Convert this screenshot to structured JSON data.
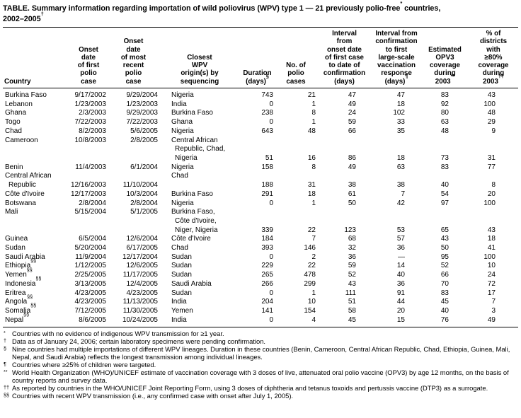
{
  "title": {
    "segments": [
      {
        "text": "TABLE. Summary information regarding importation of wild poliovirus (WPV) type 1 — 21 previously polio-free"
      },
      {
        "sup": "*"
      },
      {
        "text": " countries,"
      },
      {
        "br": true
      },
      {
        "text": "2002–2005"
      },
      {
        "sup": "†"
      }
    ]
  },
  "table": {
    "columns": [
      {
        "id": "country",
        "lines": [
          "Country"
        ],
        "data_align": "left",
        "va": "top"
      },
      {
        "id": "date_first",
        "lines": [
          "Onset",
          "date",
          "of first",
          "polio",
          "case"
        ],
        "data_align": "right",
        "va": "dates"
      },
      {
        "id": "date_recent",
        "lines": [
          "Onset",
          "date",
          "of most",
          "recent",
          "polio",
          "case"
        ],
        "data_align": "right",
        "va": "dates"
      },
      {
        "id": "origin",
        "lines": [
          "Closest",
          "WPV",
          "origin(s) by",
          "sequencing"
        ],
        "data_align": "left",
        "va": "top"
      },
      {
        "id": "duration",
        "lines": [
          "Duration",
          "(days)"
        ],
        "sup": "§",
        "data_align": "right",
        "va": "bottom"
      },
      {
        "id": "cases",
        "lines": [
          "No. of",
          "polio",
          "cases"
        ],
        "data_align": "right",
        "va": "bottom"
      },
      {
        "id": "interval_confirmation",
        "lines": [
          "Interval",
          "from",
          "onset date",
          "of first case",
          "to date of",
          "confirmation",
          "(days)"
        ],
        "data_align": "right",
        "va": "bottom"
      },
      {
        "id": "interval_response",
        "lines": [
          "Interval from",
          "confirmation",
          "to first",
          "large-scale",
          "vaccination",
          "response",
          "(days)"
        ],
        "sup": "¶",
        "data_align": "right",
        "va": "bottom"
      },
      {
        "id": "opv3",
        "lines": [
          "Estimated",
          "OPV3",
          "coverage",
          "during",
          "2003"
        ],
        "sup": "**",
        "data_align": "right",
        "va": "bottom"
      },
      {
        "id": "districts",
        "lines": [
          "% of",
          "districts",
          "with",
          "≥80%",
          "coverage",
          "during",
          "2003"
        ],
        "sup": "††",
        "data_align": "right",
        "va": "bottom"
      }
    ],
    "rows": [
      {
        "country": [
          "Burkina Faso"
        ],
        "date_first": "9/17/2002",
        "date_recent": "9/29/2004",
        "origin": [
          "Nigeria"
        ],
        "duration": "743",
        "cases": "21",
        "interval_confirmation": "47",
        "interval_response": "47",
        "opv3": "83",
        "districts": "43"
      },
      {
        "country": [
          "Lebanon"
        ],
        "date_first": "1/23/2003",
        "date_recent": "1/23/2003",
        "origin": [
          "India"
        ],
        "duration": "0",
        "cases": "1",
        "interval_confirmation": "49",
        "interval_response": "18",
        "opv3": "92",
        "districts": "100"
      },
      {
        "country": [
          "Ghana"
        ],
        "date_first": "2/3/2003",
        "date_recent": "9/29/2003",
        "origin": [
          "Burkina Faso"
        ],
        "duration": "238",
        "cases": "8",
        "interval_confirmation": "24",
        "interval_response": "102",
        "opv3": "80",
        "districts": "48"
      },
      {
        "country": [
          "Togo"
        ],
        "date_first": "7/22/2003",
        "date_recent": "7/22/2003",
        "origin": [
          "Ghana"
        ],
        "duration": "0",
        "cases": "1",
        "interval_confirmation": "59",
        "interval_response": "33",
        "opv3": "63",
        "districts": "29"
      },
      {
        "country": [
          "Chad"
        ],
        "date_first": "8/2/2003",
        "date_recent": "5/6/2005",
        "origin": [
          "Nigeria"
        ],
        "duration": "643",
        "cases": "48",
        "interval_confirmation": "66",
        "interval_response": "35",
        "opv3": "48",
        "districts": "9"
      },
      {
        "country": [
          "Cameroon"
        ],
        "date_first": "10/8/2003",
        "date_recent": "2/8/2005",
        "origin": [
          "Central African",
          "Republic, Chad,",
          "Nigeria"
        ],
        "duration": "51",
        "cases": "16",
        "interval_confirmation": "86",
        "interval_response": "18",
        "opv3": "73",
        "districts": "31",
        "dates_top": true
      },
      {
        "country": [
          "Benin"
        ],
        "date_first": "11/4/2003",
        "date_recent": "6/1/2004",
        "origin": [
          "Nigeria"
        ],
        "duration": "158",
        "cases": "8",
        "interval_confirmation": "49",
        "interval_response": "63",
        "opv3": "83",
        "districts": "77"
      },
      {
        "country": [
          "Central African",
          "Republic"
        ],
        "date_first": "12/16/2003",
        "date_recent": "11/10/2004",
        "origin": [
          "Chad"
        ],
        "duration": "188",
        "cases": "31",
        "interval_confirmation": "38",
        "interval_response": "38",
        "opv3": "40",
        "districts": "8"
      },
      {
        "country": [
          "Côte d'Ivoire"
        ],
        "date_first": "12/17/2003",
        "date_recent": "10/3/2004",
        "origin": [
          "Burkina Faso"
        ],
        "duration": "291",
        "cases": "18",
        "interval_confirmation": "61",
        "interval_response": "7",
        "opv3": "54",
        "districts": "20"
      },
      {
        "country": [
          "Botswana"
        ],
        "date_first": "2/8/2004",
        "date_recent": "2/8/2004",
        "origin": [
          "Nigeria"
        ],
        "duration": "0",
        "cases": "1",
        "interval_confirmation": "50",
        "interval_response": "42",
        "opv3": "97",
        "districts": "100"
      },
      {
        "country": [
          "Mali"
        ],
        "date_first": "5/15/2004",
        "date_recent": "5/1/2005",
        "origin": [
          "Burkina Faso,",
          "Côte d'Ivoire,",
          "Niger, Nigeria"
        ],
        "duration": "339",
        "cases": "22",
        "interval_confirmation": "123",
        "interval_response": "53",
        "opv3": "65",
        "districts": "43",
        "dates_top": true
      },
      {
        "country": [
          "Guinea"
        ],
        "date_first": "6/5/2004",
        "date_recent": "12/6/2004",
        "origin": [
          "Côte d'Ivoire"
        ],
        "duration": "184",
        "cases": "7",
        "interval_confirmation": "68",
        "interval_response": "57",
        "opv3": "43",
        "districts": "18"
      },
      {
        "country": [
          "Sudan"
        ],
        "date_first": "5/20/2004",
        "date_recent": "6/17/2005",
        "origin": [
          "Chad"
        ],
        "duration": "393",
        "cases": "146",
        "interval_confirmation": "32",
        "interval_response": "36",
        "opv3": "50",
        "districts": "41"
      },
      {
        "country": [
          "Saudi Arabia"
        ],
        "date_first": "11/9/2004",
        "date_recent": "12/17/2004",
        "origin": [
          "Sudan"
        ],
        "duration": "0",
        "cases": "2",
        "interval_confirmation": "36",
        "interval_response": "—",
        "opv3": "95",
        "districts": "100"
      },
      {
        "country": [
          "Ethiopia"
        ],
        "sup": "§§",
        "date_first": "1/12/2005",
        "date_recent": "12/6/2005",
        "origin": [
          "Sudan"
        ],
        "duration": "229",
        "cases": "22",
        "interval_confirmation": "59",
        "interval_response": "14",
        "opv3": "52",
        "districts": "10"
      },
      {
        "country": [
          "Yemen"
        ],
        "sup": "§§",
        "date_first": "2/25/2005",
        "date_recent": "11/17/2005",
        "origin": [
          "Sudan"
        ],
        "duration": "265",
        "cases": "478",
        "interval_confirmation": "52",
        "interval_response": "40",
        "opv3": "66",
        "districts": "24"
      },
      {
        "country": [
          "Indonesia"
        ],
        "sup": "§§",
        "date_first": "3/13/2005",
        "date_recent": "12/4/2005",
        "origin": [
          "Saudi Arabia"
        ],
        "duration": "266",
        "cases": "299",
        "interval_confirmation": "43",
        "interval_response": "36",
        "opv3": "70",
        "districts": "72"
      },
      {
        "country": [
          "Eritrea"
        ],
        "date_first": "4/23/2005",
        "date_recent": "4/23/2005",
        "origin": [
          "Sudan"
        ],
        "duration": "0",
        "cases": "1",
        "interval_confirmation": "111",
        "interval_response": "91",
        "opv3": "83",
        "districts": "17"
      },
      {
        "country": [
          "Angola"
        ],
        "sup": "§§",
        "date_first": "4/23/2005",
        "date_recent": "11/13/2005",
        "origin": [
          "India"
        ],
        "duration": "204",
        "cases": "10",
        "interval_confirmation": "51",
        "interval_response": "44",
        "opv3": "45",
        "districts": "7"
      },
      {
        "country": [
          "Somalia"
        ],
        "sup": "§§",
        "date_first": "7/12/2005",
        "date_recent": "11/30/2005",
        "origin": [
          "Yemen"
        ],
        "duration": "141",
        "cases": "154",
        "interval_confirmation": "58",
        "interval_response": "20",
        "opv3": "40",
        "districts": "3"
      },
      {
        "country": [
          "Nepal"
        ],
        "sup": "§§",
        "date_first": "8/6/2005",
        "date_recent": "10/24/2005",
        "origin": [
          "India"
        ],
        "duration": "0",
        "cases": "4",
        "interval_confirmation": "45",
        "interval_response": "15",
        "opv3": "76",
        "districts": "49"
      }
    ]
  },
  "footnotes": [
    {
      "marker": "*",
      "text": "Countries with no evidence of indigenous WPV transmission for ≥1 year."
    },
    {
      "marker": "†",
      "text": "Data as of January 24, 2006; certain laboratory specimens were pending confirmation."
    },
    {
      "marker": "§",
      "text": "Nine countries had multiple importations of different WPV lineages. Duration in these countries (Benin, Cameroon, Central African Republic, Chad, Ethiopia, Guinea, Mali, Nepal, and Saudi Arabia) reflects the longest transmission among individual lineages."
    },
    {
      "marker": "¶",
      "text": "Countries where ≥25% of children were targeted."
    },
    {
      "marker": "**",
      "text": "World Health Organization (WHO)/UNICEF estimate of vaccination coverage with 3 doses of live, attenuated oral polio vaccine (OPV3) by age 12 months, on the basis of country reports and survey data."
    },
    {
      "marker": "††",
      "text": "As reported by countries in the WHO/UNICEF Joint Reporting Form, using 3 doses of diphtheria and tetanus toxoids and pertussis vaccine (DTP3) as a surrogate."
    },
    {
      "marker": "§§",
      "text": "Countries with recent WPV transmission (i.e., any confirmed case with onset after July 1, 2005)."
    }
  ],
  "colors": {
    "text": "#000000",
    "background": "#ffffff",
    "rule": "#000000"
  }
}
